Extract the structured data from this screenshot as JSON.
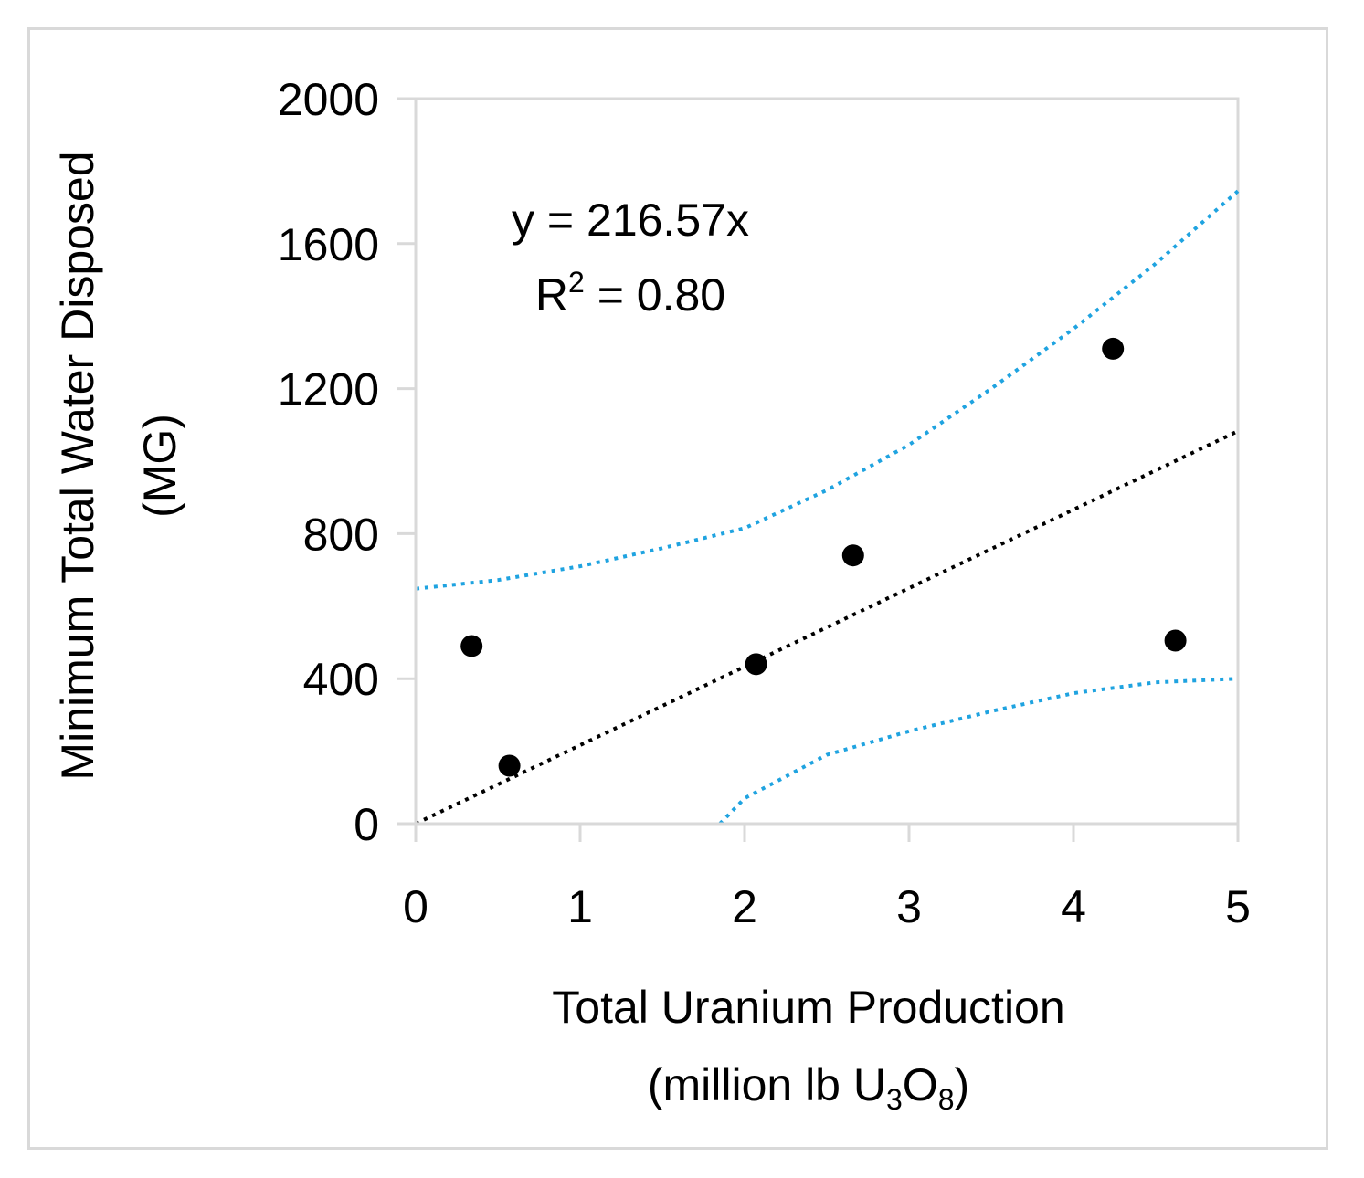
{
  "chart_data": {
    "type": "scatter",
    "title": "",
    "xlabel_line1": "Total Uranium Production",
    "xlabel_line2_prefix": "(million lb U",
    "xlabel_sub1": "3",
    "xlabel_mid": "O",
    "xlabel_sub2": "8",
    "xlabel_suffix": ")",
    "ylabel_line1": "Minimum Total Water Disposed",
    "ylabel_line2": "(MG)",
    "xlim": [
      0,
      5
    ],
    "ylim": [
      0,
      2000
    ],
    "x_ticks": [
      "0",
      "1",
      "2",
      "3",
      "4",
      "5"
    ],
    "y_ticks": [
      "0",
      "400",
      "800",
      "1200",
      "1600",
      "2000"
    ],
    "grid": false,
    "points": {
      "x": [
        0.34,
        0.57,
        2.07,
        2.66,
        4.24,
        4.62
      ],
      "y": [
        490,
        160,
        440,
        740,
        1310,
        505
      ],
      "color": "#000000"
    },
    "trendline": {
      "slope": 216.57,
      "x_range": [
        0,
        5
      ],
      "color": "#000000"
    },
    "upper_band": {
      "x": [
        0,
        0.5,
        1,
        1.5,
        2,
        2.5,
        3,
        3.5,
        4,
        4.5,
        5
      ],
      "y": [
        648,
        672,
        710,
        760,
        815,
        920,
        1045,
        1200,
        1365,
        1545,
        1745
      ],
      "color": "#1fa3e0"
    },
    "lower_band": {
      "x": [
        1.85,
        2,
        2.5,
        3,
        3.5,
        4,
        4.5,
        5
      ],
      "y": [
        0,
        70,
        190,
        255,
        310,
        360,
        390,
        400
      ],
      "color": "#1fa3e0"
    },
    "equation_label": "y = 216.57x",
    "r2_prefix": "R",
    "r2_sup": "2",
    "r2_suffix": " = 0.80"
  }
}
